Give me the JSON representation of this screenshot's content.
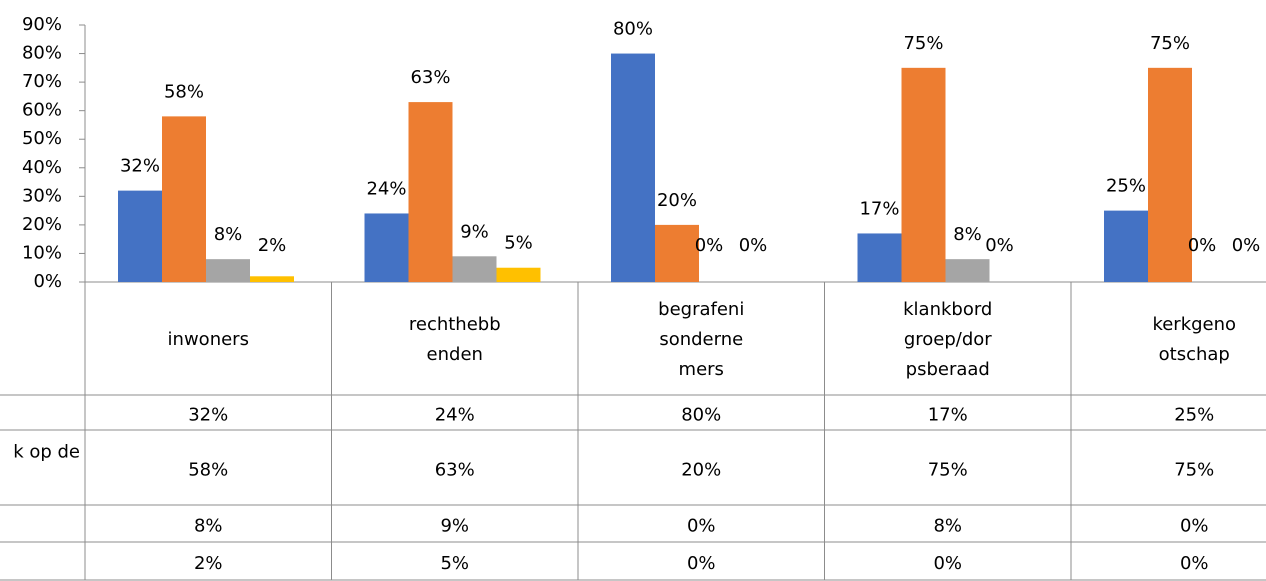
{
  "chart_data": {
    "type": "bar",
    "categories": [
      [
        "inwoners"
      ],
      [
        "rechthebb",
        "enden"
      ],
      [
        "begrafeni",
        "sonderne",
        "mers"
      ],
      [
        "klankbord",
        "groep/dor",
        "psberaad"
      ],
      [
        "kerkgeno",
        "otschap"
      ]
    ],
    "series": [
      {
        "color": "#4472c4",
        "values": [
          32,
          24,
          80,
          17,
          25
        ],
        "value_labels": [
          "32%",
          "24%",
          "80%",
          "17%",
          "25%"
        ]
      },
      {
        "name": "k op de",
        "color": "#ed7d31",
        "values": [
          58,
          63,
          20,
          75,
          75
        ],
        "value_labels": [
          "58%",
          "63%",
          "20%",
          "75%",
          "75%"
        ]
      },
      {
        "color": "#a5a5a5",
        "values": [
          8,
          9,
          0,
          8,
          0
        ],
        "value_labels": [
          "8%",
          "9%",
          "0%",
          "8%",
          "0%"
        ]
      },
      {
        "color": "#ffc000",
        "values": [
          2,
          5,
          0,
          0,
          0
        ],
        "value_labels": [
          "2%",
          "5%",
          "0%",
          "0%",
          "0%"
        ]
      }
    ],
    "ylim": [
      0,
      90
    ],
    "yticks": [
      {
        "value": 0,
        "label": "0%"
      },
      {
        "value": 10,
        "label": "10%"
      },
      {
        "value": 20,
        "label": "20%"
      },
      {
        "value": 30,
        "label": "30%"
      },
      {
        "value": 40,
        "label": "40%"
      },
      {
        "value": 50,
        "label": "50%"
      },
      {
        "value": 60,
        "label": "60%"
      },
      {
        "value": 70,
        "label": "70%"
      },
      {
        "value": 80,
        "label": "80%"
      },
      {
        "value": 90,
        "label": "90%"
      }
    ]
  }
}
